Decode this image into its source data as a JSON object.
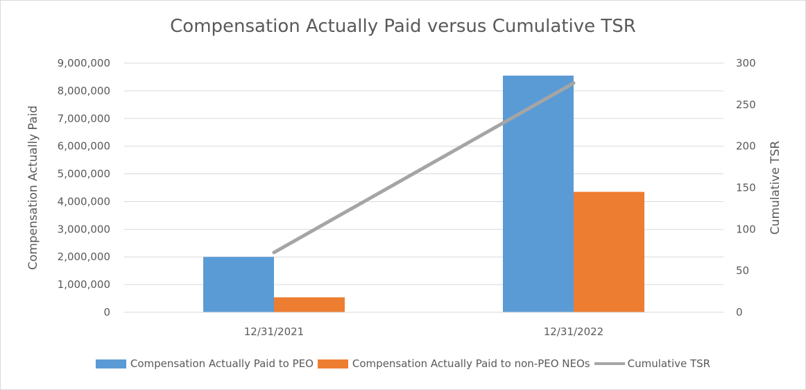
{
  "chart_data": {
    "type": "bar",
    "title": "Compensation Actually Paid versus Cumulative TSR",
    "categories": [
      "12/31/2021",
      "12/31/2022"
    ],
    "series": [
      {
        "name": "Compensation Actually Paid to PEO",
        "type": "bar",
        "axis": "left",
        "color": "#5b9bd5",
        "values": [
          2000000,
          8550000
        ]
      },
      {
        "name": "Compensation Actually Paid to non-PEO NEOs",
        "type": "bar",
        "axis": "left",
        "color": "#ed7d31",
        "values": [
          540000,
          4350000
        ]
      },
      {
        "name": "Cumulative TSR",
        "type": "line",
        "axis": "right",
        "color": "#a5a5a5",
        "values": [
          72,
          276
        ]
      }
    ],
    "ylabel": "Compensation Actually Paid",
    "y2label": "Cumulative TSR",
    "ylim": [
      0,
      9000000
    ],
    "y2lim": [
      0,
      300
    ],
    "yticks": [
      "0",
      "1,000,000",
      "2,000,000",
      "3,000,000",
      "4,000,000",
      "5,000,000",
      "6,000,000",
      "7,000,000",
      "8,000,000",
      "9,000,000"
    ],
    "y2ticks": [
      "0",
      "50",
      "100",
      "150",
      "200",
      "250",
      "300"
    ],
    "grid": true,
    "legend_position": "bottom"
  }
}
